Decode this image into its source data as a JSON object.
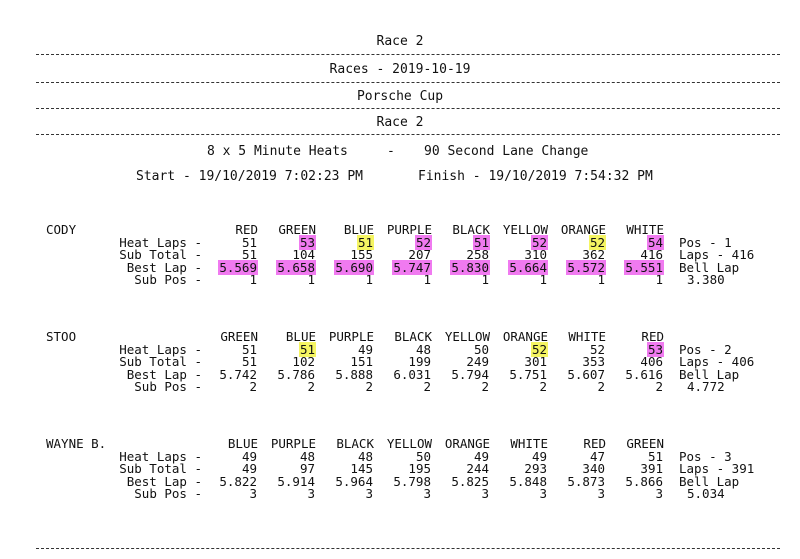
{
  "header": {
    "title": "Race 2",
    "subtitle_date": "Races - 2019-10-19",
    "series": "Porsche Cup",
    "race": "Race 2",
    "heats_info": "8 x 5 Minute Heats",
    "sep": "-",
    "lane_change": "90 Second Lane Change",
    "start": "Start - 19/10/2019 7:02:23 PM",
    "finish": "Finish - 19/10/2019 7:54:32 PM"
  },
  "row_labels": {
    "heat_laps": "Heat Laps -",
    "sub_total": "Sub Total -",
    "best_lap": "Best Lap -",
    "sub_pos": "Sub Pos -"
  },
  "drivers": [
    {
      "name": "CODY",
      "colors": [
        "RED",
        "GREEN",
        "BLUE",
        "PURPLE",
        "BLACK",
        "YELLOW",
        "ORANGE",
        "WHITE"
      ],
      "heat_laps": [
        "51",
        "53",
        "51",
        "52",
        "51",
        "52",
        "52",
        "54"
      ],
      "heat_hl": [
        "",
        "m",
        "y",
        "m",
        "m",
        "m",
        "y",
        "m"
      ],
      "sub_total": [
        "51",
        "104",
        "155",
        "207",
        "258",
        "310",
        "362",
        "416"
      ],
      "best_lap": [
        "5.569",
        "5.658",
        "5.690",
        "5.747",
        "5.830",
        "5.664",
        "5.572",
        "5.551"
      ],
      "best_hl": [
        "m",
        "m",
        "m",
        "m",
        "m",
        "m",
        "m",
        "m"
      ],
      "sub_pos": [
        "1",
        "1",
        "1",
        "1",
        "1",
        "1",
        "1",
        "1"
      ],
      "pos": "Pos - 1",
      "laps": "Laps - 416",
      "bell_label": "Bell Lap",
      "bell_value": "3.380"
    },
    {
      "name": "STOO",
      "colors": [
        "GREEN",
        "BLUE",
        "PURPLE",
        "BLACK",
        "YELLOW",
        "ORANGE",
        "WHITE",
        "RED"
      ],
      "heat_laps": [
        "51",
        "51",
        "49",
        "48",
        "50",
        "52",
        "52",
        "53"
      ],
      "heat_hl": [
        "",
        "y",
        "",
        "",
        "",
        "y",
        "",
        "m"
      ],
      "sub_total": [
        "51",
        "102",
        "151",
        "199",
        "249",
        "301",
        "353",
        "406"
      ],
      "best_lap": [
        "5.742",
        "5.786",
        "5.888",
        "6.031",
        "5.794",
        "5.751",
        "5.607",
        "5.616"
      ],
      "best_hl": [
        "",
        "",
        "",
        "",
        "",
        "",
        "",
        ""
      ],
      "sub_pos": [
        "2",
        "2",
        "2",
        "2",
        "2",
        "2",
        "2",
        "2"
      ],
      "pos": "Pos - 2",
      "laps": "Laps - 406",
      "bell_label": "Bell Lap",
      "bell_value": "4.772"
    },
    {
      "name": "WAYNE B.",
      "colors": [
        "BLUE",
        "PURPLE",
        "BLACK",
        "YELLOW",
        "ORANGE",
        "WHITE",
        "RED",
        "GREEN"
      ],
      "heat_laps": [
        "49",
        "48",
        "48",
        "50",
        "49",
        "49",
        "47",
        "51"
      ],
      "heat_hl": [
        "",
        "",
        "",
        "",
        "",
        "",
        "",
        ""
      ],
      "sub_total": [
        "49",
        "97",
        "145",
        "195",
        "244",
        "293",
        "340",
        "391"
      ],
      "best_lap": [
        "5.822",
        "5.914",
        "5.964",
        "5.798",
        "5.825",
        "5.848",
        "5.873",
        "5.866"
      ],
      "best_hl": [
        "",
        "",
        "",
        "",
        "",
        "",
        "",
        ""
      ],
      "sub_pos": [
        "3",
        "3",
        "3",
        "3",
        "3",
        "3",
        "3",
        "3"
      ],
      "pos": "Pos - 3",
      "laps": "Laps - 391",
      "bell_label": "Bell Lap",
      "bell_value": "5.034"
    }
  ],
  "colors": {
    "highlight_magenta": "#f07af0",
    "highlight_yellow": "#f5f562"
  }
}
